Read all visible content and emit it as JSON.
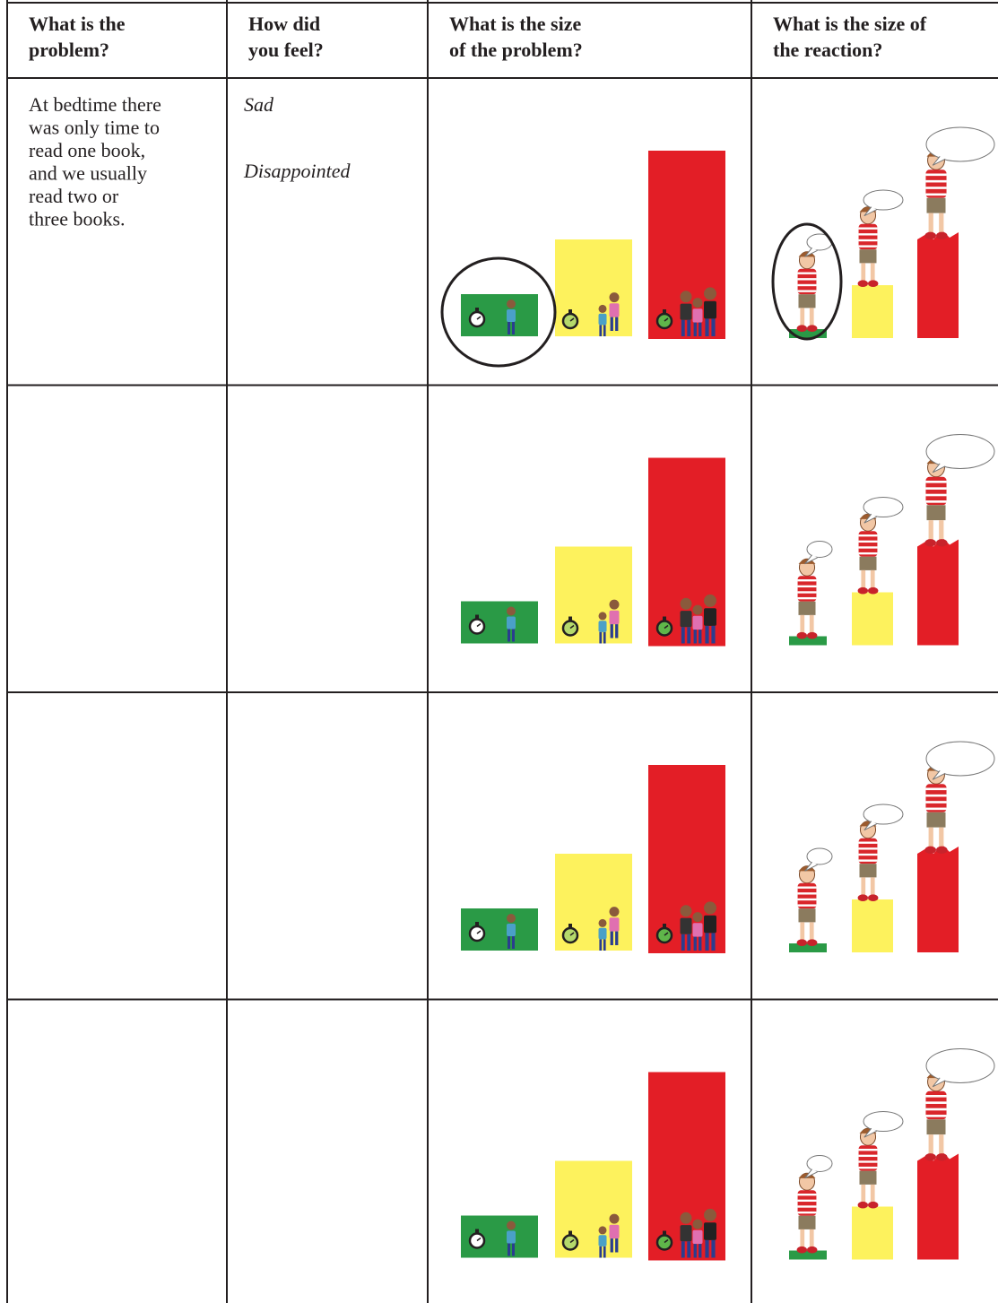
{
  "table": {
    "header": [
      [
        "What is the",
        "problem?"
      ],
      [
        "How did",
        "you feel?"
      ],
      [
        "What is the size",
        "of the problem?"
      ],
      [
        "What is the size of",
        "the reaction?"
      ]
    ],
    "rows": [
      {
        "problem": [
          "At bedtime there",
          "was only time to",
          "read one book,",
          "and we usually",
          "read two or",
          "three books."
        ],
        "feelings": [
          "Sad",
          "Disappointed"
        ]
      },
      {
        "problem": [],
        "feelings": []
      },
      {
        "problem": [],
        "feelings": []
      },
      {
        "problem": [],
        "feelings": []
      }
    ]
  }
}
